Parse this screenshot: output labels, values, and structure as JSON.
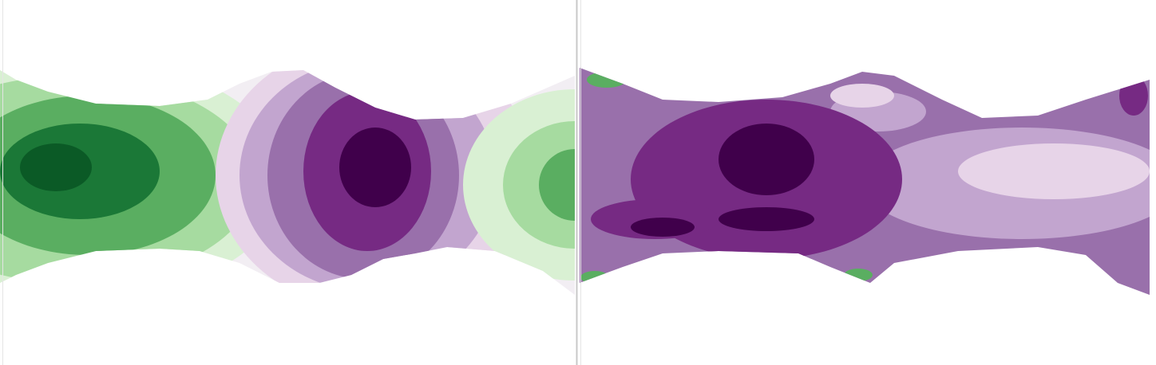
{
  "chart_data": [
    {
      "type": "contour",
      "colors": [
        "#40004b",
        "#762a83",
        "#9970ab",
        "#c2a5cf",
        "#e7d4e8",
        "#f2eef3",
        "#d9f0d3",
        "#a6dba0",
        "#5aae61",
        "#1b7837",
        "#0b5a26"
      ]
    },
    {
      "type": "contour",
      "colors": [
        "#40004b",
        "#762a83",
        "#9970ab",
        "#c2a5cf",
        "#e7d4e8",
        "#f2eef3",
        "#d9f0d3",
        "#a6dba0",
        "#5aae61",
        "#1b7837",
        "#0b5a26"
      ]
    }
  ]
}
